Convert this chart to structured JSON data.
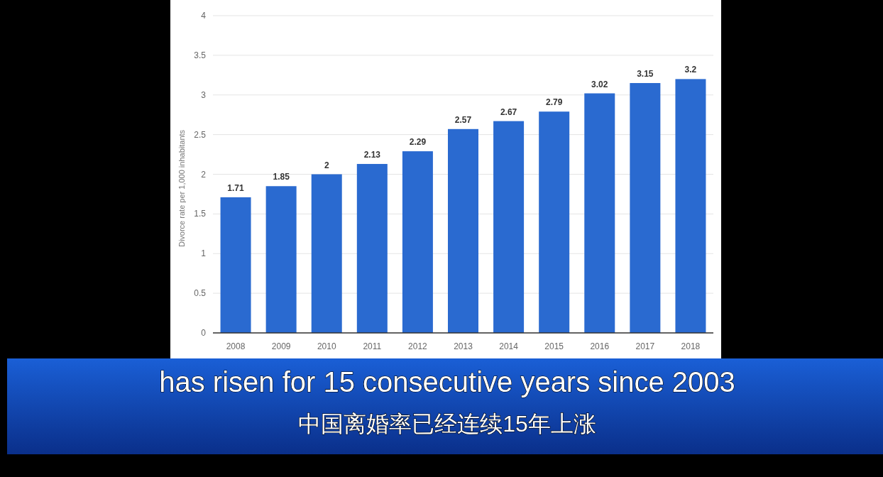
{
  "chart_data": {
    "type": "bar",
    "ylabel": "Divorce rate per 1,000 inhabitants",
    "categories": [
      "2008",
      "2009",
      "2010",
      "2011",
      "2012",
      "2013",
      "2014",
      "2015",
      "2016",
      "2017",
      "2018"
    ],
    "values": [
      1.71,
      1.85,
      2,
      2.13,
      2.29,
      2.57,
      2.67,
      2.79,
      3.02,
      3.15,
      3.2
    ],
    "color": "#2a6ad0",
    "ylim": [
      0,
      4
    ],
    "yticks": [
      0,
      0.5,
      1,
      1.5,
      2,
      2.5,
      3,
      3.5,
      4
    ],
    "grid": "y",
    "data_labels": true,
    "annotations": [
      "has risen for 15 consecutive years since 2003",
      "中国离婚率已经连续15年上涨"
    ]
  }
}
